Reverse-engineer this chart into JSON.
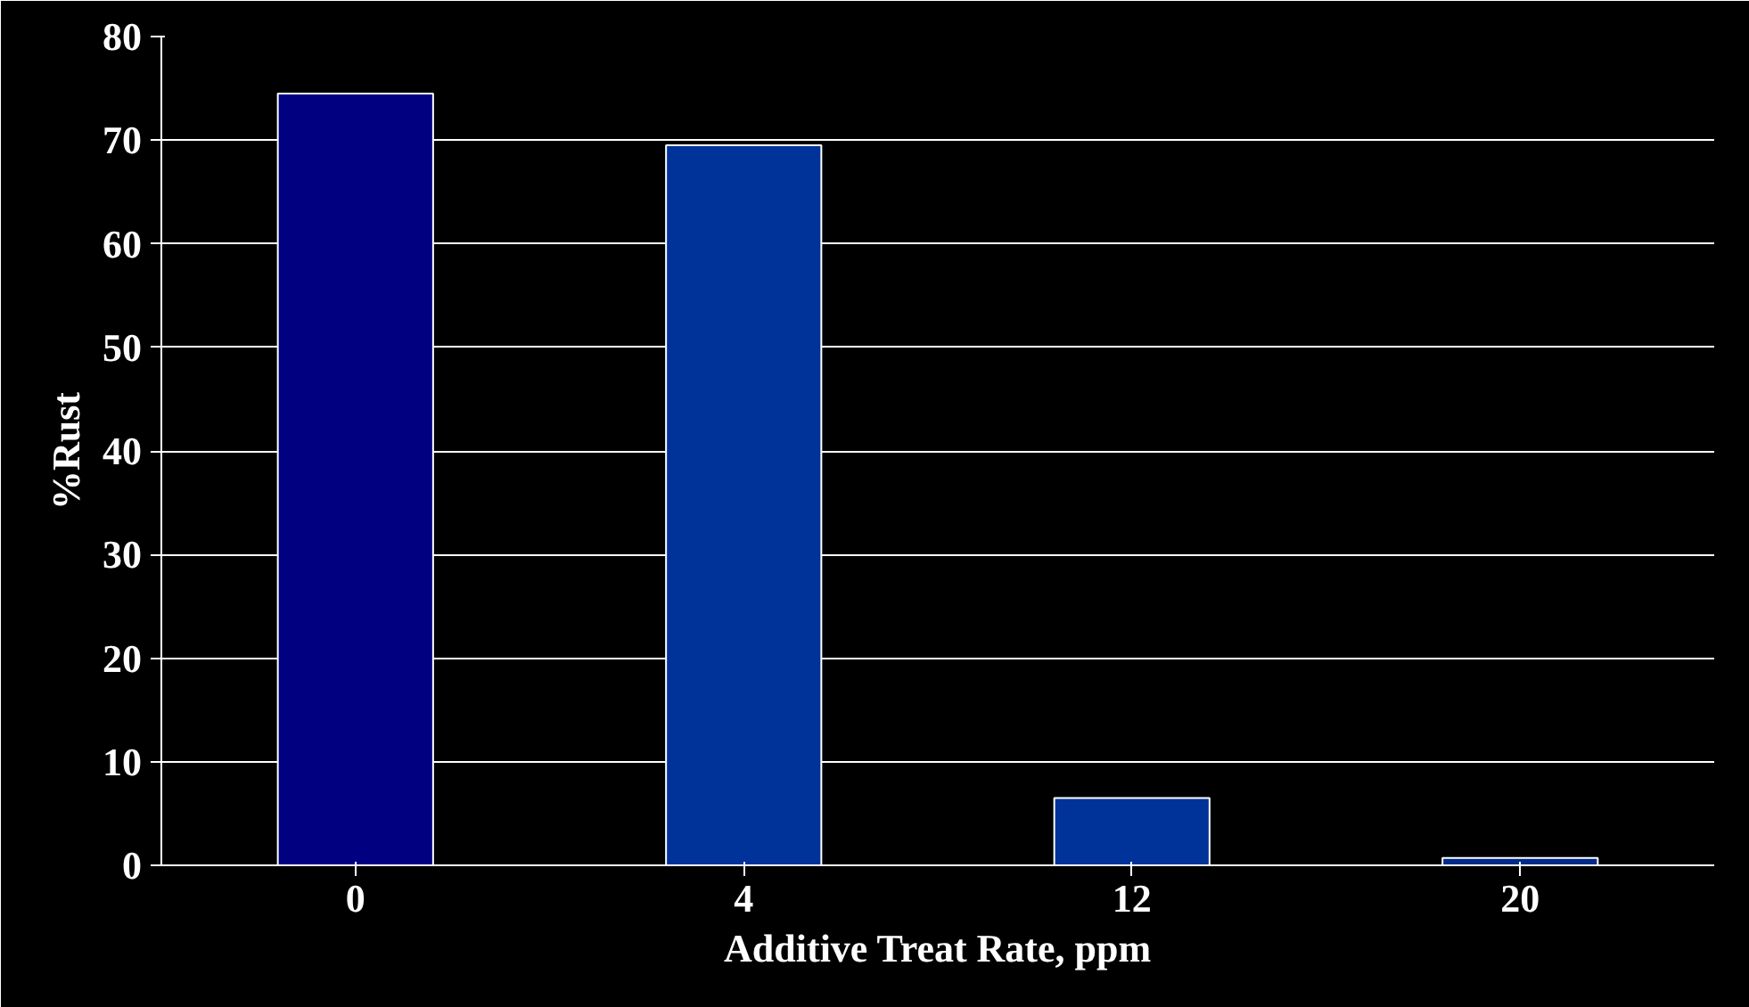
{
  "chart_data": {
    "type": "bar",
    "xlabel": "Additive Treat Rate, ppm",
    "ylabel": "%Rust",
    "categories": [
      "0",
      "4",
      "12",
      "20"
    ],
    "values": [
      74.5,
      69.5,
      6.5,
      0.7
    ],
    "colors": [
      "#000080",
      "#003399",
      "#003399",
      "#002c8a"
    ],
    "ylim": [
      0,
      80
    ],
    "yticks": [
      0,
      10,
      20,
      30,
      40,
      50,
      60,
      70,
      80
    ],
    "grid": "y"
  }
}
